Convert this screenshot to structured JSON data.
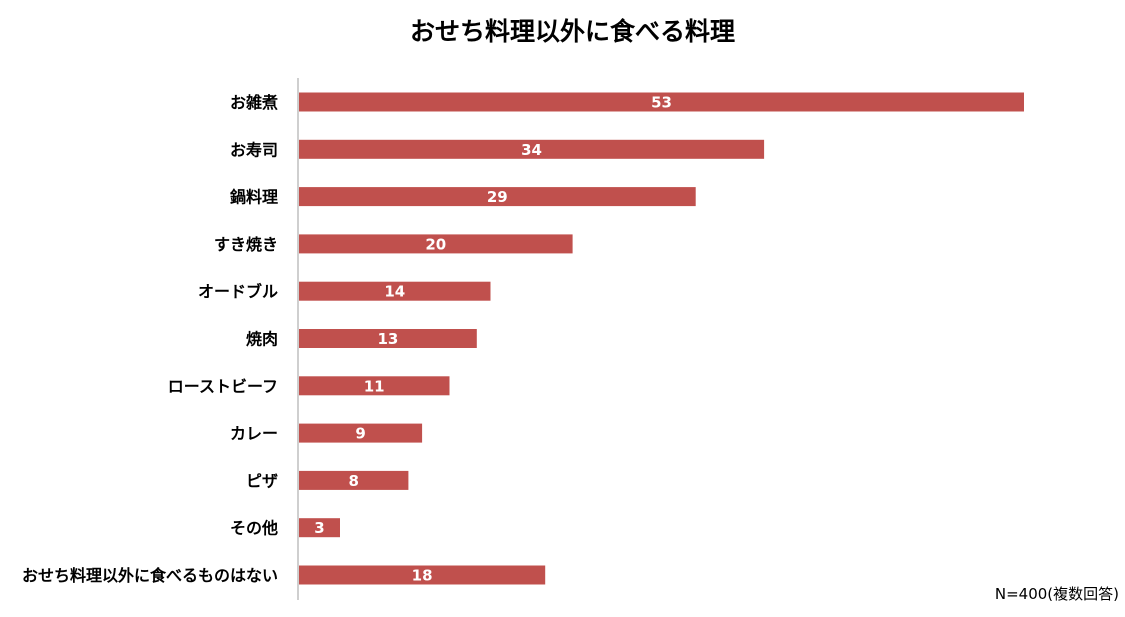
{
  "chart_data": {
    "type": "bar",
    "orientation": "horizontal",
    "title": "おせち料理以外に食べる料理",
    "categories": [
      "お雑煮",
      "お寿司",
      "鍋料理",
      "すき焼き",
      "オードブル",
      "焼肉",
      "ローストビーフ",
      "カレー",
      "ピザ",
      "その他",
      "おせち料理以外に食べるものはない"
    ],
    "values": [
      53,
      34,
      29,
      20,
      14,
      13,
      11,
      9,
      8,
      3,
      18
    ],
    "xlim": [
      0,
      53
    ],
    "grid": false,
    "legend": "none",
    "data_labels": true,
    "bar_color": "#c0504d",
    "value_label_color": "#ffffff",
    "axis_color": "#bfbfbf"
  },
  "note": "N=400(複数回答)"
}
